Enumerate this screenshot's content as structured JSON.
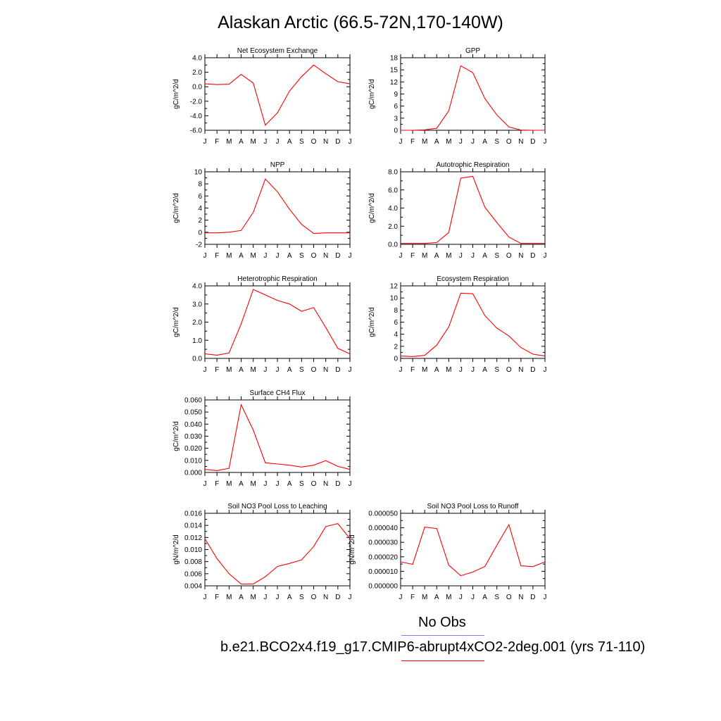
{
  "title": "Alaskan Arctic (66.5-72N,170-140W)",
  "months": [
    "J",
    "F",
    "M",
    "A",
    "M",
    "J",
    "J",
    "A",
    "S",
    "O",
    "N",
    "D",
    "J"
  ],
  "legend": {
    "obs_label": "No Obs",
    "obs_color": "#7f7fff",
    "model_label": "b.e21.BCO2x4.f19_g17.CMIP6-abrupt4xCO2-2deg.001 (yrs 71-110)",
    "model_color": "#ff0000"
  },
  "chart_data": [
    {
      "type": "line",
      "title": "Net Ecosystem Exchange",
      "ylabel": "gC/m^2/d",
      "ylim": [
        -6,
        4
      ],
      "yticks": [
        "4.0",
        "2.0",
        "0.0",
        "-2.0",
        "-4.0",
        "-6.0"
      ],
      "values": [
        0.4,
        0.3,
        0.35,
        1.7,
        0.5,
        -5.3,
        -3.6,
        -0.6,
        1.4,
        3.0,
        1.8,
        0.7,
        0.4
      ]
    },
    {
      "type": "line",
      "title": "GPP",
      "ylabel": "gC/m^2/d",
      "ylim": [
        0,
        18
      ],
      "yticks": [
        "18",
        "15",
        "12",
        "9",
        "6",
        "3",
        "0"
      ],
      "values": [
        0,
        0,
        0.1,
        0.5,
        4.8,
        16.0,
        14.3,
        7.9,
        3.8,
        0.8,
        0.05,
        0,
        0
      ]
    },
    {
      "type": "line",
      "title": "NPP",
      "ylabel": "gC/m^2/d",
      "ylim": [
        -2,
        10
      ],
      "yticks": [
        "10",
        "8",
        "6",
        "4",
        "2",
        "0",
        "-2"
      ],
      "values": [
        -0.1,
        -0.1,
        0,
        0.3,
        3.3,
        8.8,
        6.7,
        3.8,
        1.3,
        -0.2,
        -0.1,
        -0.1,
        -0.1
      ]
    },
    {
      "type": "line",
      "title": "Autotrophic Respiration",
      "ylabel": "gC/m^2/d",
      "ylim": [
        0,
        8
      ],
      "yticks": [
        "8.0",
        "6.0",
        "4.0",
        "2.0",
        "0.0"
      ],
      "values": [
        0.1,
        0.1,
        0.1,
        0.2,
        1.3,
        7.3,
        7.5,
        4.1,
        2.4,
        0.8,
        0.1,
        0.1,
        0.1
      ]
    },
    {
      "type": "line",
      "title": "Heterotrophic Respiration",
      "ylabel": "gC/m^2/d",
      "ylim": [
        0,
        4
      ],
      "yticks": [
        "4.0",
        "3.0",
        "2.0",
        "1.0",
        "0.0"
      ],
      "values": [
        0.25,
        0.18,
        0.3,
        1.9,
        3.8,
        3.5,
        3.2,
        3.0,
        2.6,
        2.8,
        1.7,
        0.55,
        0.25
      ]
    },
    {
      "type": "line",
      "title": "Ecosystem Respiration",
      "ylabel": "gC/m^2/d",
      "ylim": [
        0,
        12
      ],
      "yticks": [
        "12",
        "10",
        "8",
        "6",
        "4",
        "2",
        "0"
      ],
      "values": [
        0.4,
        0.3,
        0.5,
        2.2,
        5.2,
        10.8,
        10.7,
        7.1,
        5.0,
        3.7,
        1.8,
        0.7,
        0.4
      ]
    },
    {
      "type": "line",
      "title": "Surface CH4 Flux",
      "ylabel": "gC/m^2/d",
      "ylim": [
        0,
        0.06
      ],
      "yticks": [
        "0.060",
        "0.050",
        "0.040",
        "0.030",
        "0.020",
        "0.010",
        "0.000"
      ],
      "values": [
        0.0025,
        0.0015,
        0.0035,
        0.056,
        0.035,
        0.008,
        0.007,
        0.006,
        0.0045,
        0.006,
        0.0098,
        0.005,
        0.0025
      ]
    },
    {
      "type": "line",
      "title": "Soil NO3 Pool Loss to Leaching",
      "ylabel": "gN/m^2/d",
      "ylim": [
        0.004,
        0.016
      ],
      "yticks": [
        "0.016",
        "0.014",
        "0.012",
        "0.010",
        "0.008",
        "0.006",
        "0.004"
      ],
      "values": [
        0.0118,
        0.0085,
        0.006,
        0.0043,
        0.0043,
        0.0055,
        0.0072,
        0.0077,
        0.0083,
        0.0105,
        0.0138,
        0.0143,
        0.0118
      ]
    },
    {
      "type": "line",
      "title": "Soil NO3 Pool Loss to Runoff",
      "ylabel": "gN/m^2/d",
      "ylim": [
        0,
        5e-05
      ],
      "yticks": [
        "0.000050",
        "0.000040",
        "0.000030",
        "0.000020",
        "0.000010",
        "0.000000"
      ],
      "values": [
        1.65e-05,
        1.48e-05,
        4.05e-05,
        3.95e-05,
        1.43e-05,
        7e-06,
        9.5e-06,
        1.33e-05,
        2.8e-05,
        4.22e-05,
        1.38e-05,
        1.32e-05,
        1.65e-05
      ]
    }
  ]
}
